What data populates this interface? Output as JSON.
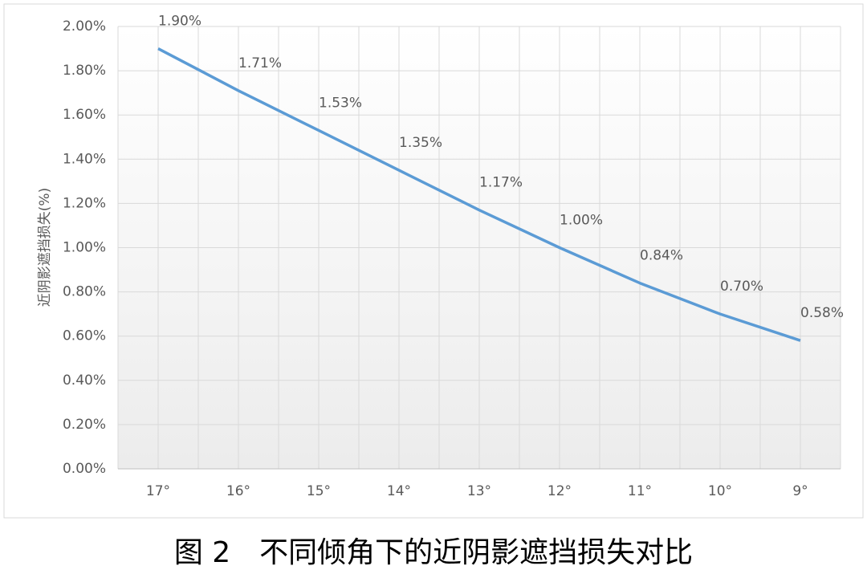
{
  "chart_data": {
    "type": "line",
    "y_axis_label": "近阴影遮挡损失(%)",
    "caption": "图 2　不同倾角下的近阴影遮挡损失对比",
    "categories": [
      "17°",
      "16°",
      "15°",
      "14°",
      "13°",
      "12°",
      "11°",
      "10°",
      "9°"
    ],
    "series": [
      {
        "color": "#5b9bd5",
        "values": [
          1.9,
          1.71,
          1.53,
          1.35,
          1.17,
          1.0,
          0.84,
          0.7,
          0.58
        ],
        "value_labels": [
          "1.90%",
          "1.71%",
          "1.53%",
          "1.35%",
          "1.17%",
          "1.00%",
          "0.84%",
          "0.70%",
          "0.58%"
        ]
      }
    ],
    "ylim": [
      0,
      2
    ],
    "yticks": [
      {
        "value": 0,
        "label": "0.00%"
      },
      {
        "value": 0.2,
        "label": "0.20%"
      },
      {
        "value": 0.4,
        "label": "0.40%"
      },
      {
        "value": 0.6,
        "label": "0.60%"
      },
      {
        "value": 0.8,
        "label": "0.80%"
      },
      {
        "value": 1.0,
        "label": "1.00%"
      },
      {
        "value": 1.2,
        "label": "1.20%"
      },
      {
        "value": 1.4,
        "label": "1.40%"
      },
      {
        "value": 1.6,
        "label": "1.60%"
      },
      {
        "value": 1.8,
        "label": "1.80%"
      },
      {
        "value": 2.0,
        "label": "2.00%"
      }
    ],
    "grid": true
  }
}
